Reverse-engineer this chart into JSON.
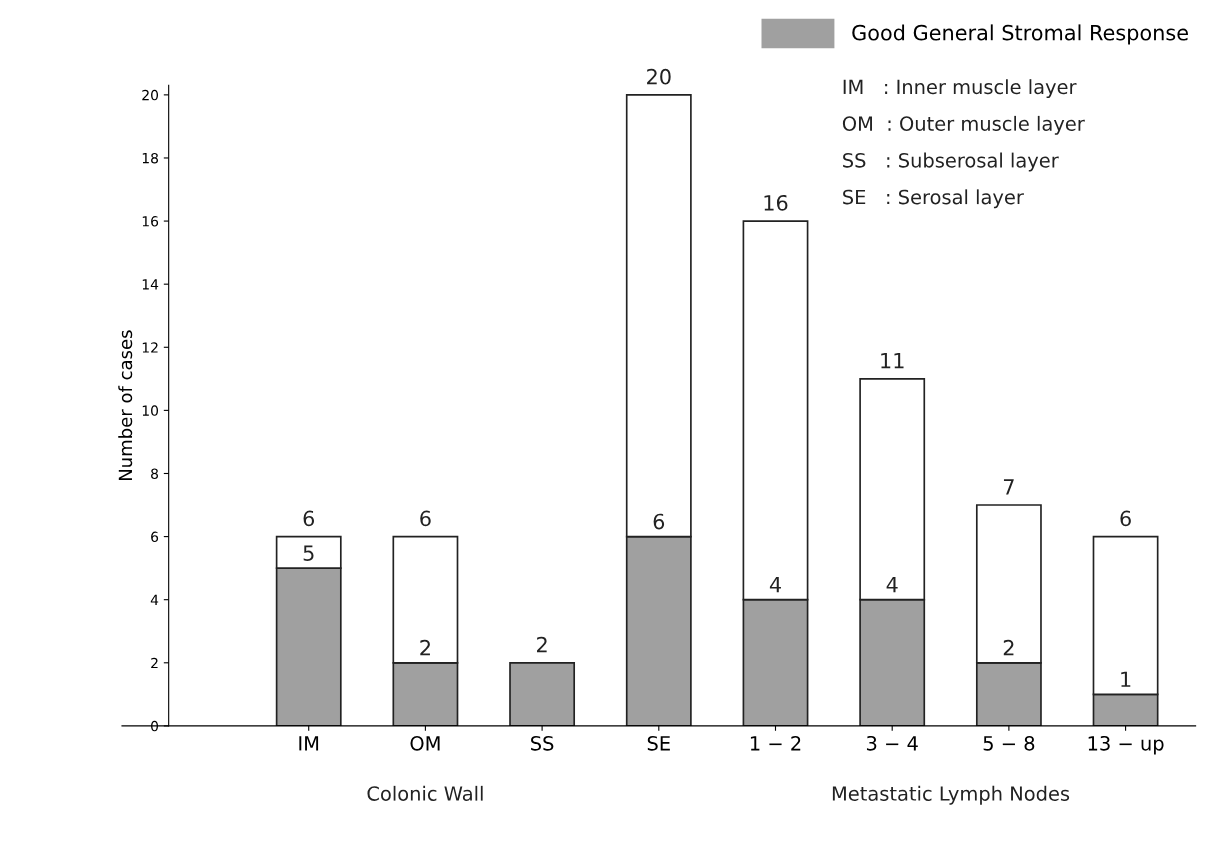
{
  "chart_data": {
    "type": "bar",
    "stacked": true,
    "ylabel": "Number of cases",
    "categories": [
      "IM",
      "OM",
      "SS",
      "SE",
      "1 − 2",
      "3 − 4",
      "5 − 8",
      "13 − up"
    ],
    "series": [
      {
        "name": "Good General Stromal Response",
        "color": "#a0a0a0",
        "values": [
          5,
          2,
          2,
          6,
          4,
          4,
          2,
          1
        ],
        "value_labels": [
          "5",
          "2",
          null,
          "6",
          "4",
          "4",
          "2",
          "1"
        ]
      },
      {
        "color": "#ffffff",
        "values": [
          1,
          4,
          0,
          14,
          12,
          7,
          5,
          5
        ]
      }
    ],
    "totals": [
      "6",
      "6",
      "2",
      "20",
      "16",
      "11",
      "7",
      "6"
    ],
    "ylim": [
      0,
      20.3
    ],
    "yticks": [
      0,
      2,
      4,
      6,
      8,
      10,
      12,
      14,
      16,
      18,
      20
    ],
    "grid": false,
    "legend": "top right",
    "annotations": [
      "IM   : Inner muscle layer",
      "OM  : Outer muscle layer",
      "SS   : Subserosal layer",
      "SE   : Serosal layer",
      "Colonic Wall",
      "Metastatic Lymph Nodes"
    ]
  }
}
